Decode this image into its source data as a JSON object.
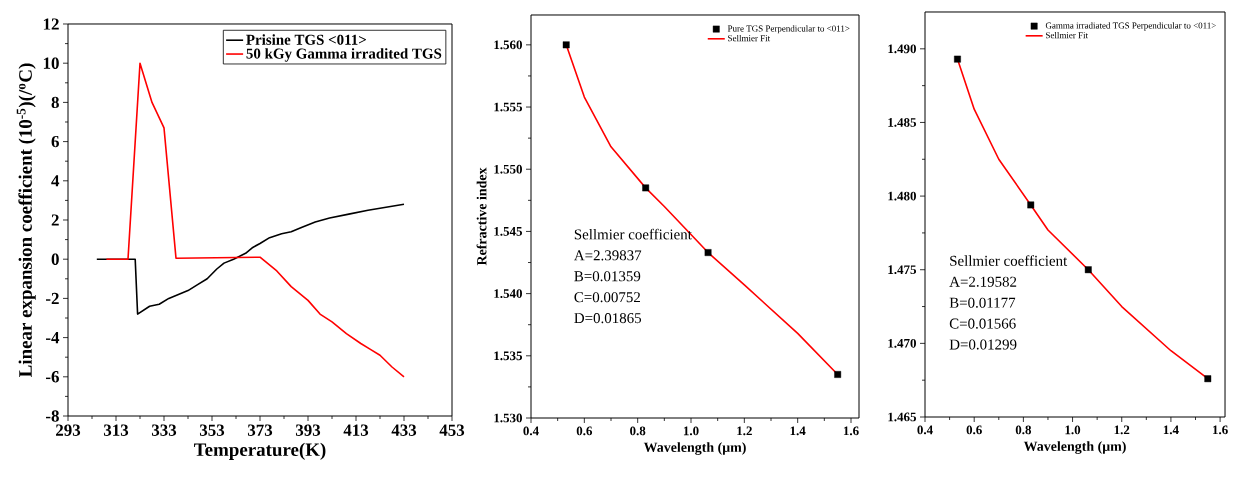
{
  "chart_data": [
    {
      "type": "line",
      "xlabel": "Temperature(K)",
      "ylabel": "Linear expansion coefficient (10$^{-5}$)(/$^{o}$C)",
      "xlim": [
        293,
        453
      ],
      "ylim": [
        -8,
        12
      ],
      "xticks": [
        293,
        313,
        333,
        353,
        373,
        393,
        413,
        433,
        453
      ],
      "yticks": [
        -8,
        -6,
        -4,
        -2,
        0,
        2,
        4,
        6,
        8,
        10,
        12
      ],
      "legend": "top right",
      "series": [
        {
          "name": "Prisine TGS <011>",
          "color": "#000000",
          "x": [
            305,
            321,
            322,
            327,
            331,
            335,
            339,
            343,
            347,
            351,
            355,
            358,
            362,
            367,
            370,
            373,
            377,
            382,
            386,
            390,
            396,
            402,
            410,
            418,
            423,
            433
          ],
          "values": [
            0,
            0,
            -2.8,
            -2.4,
            -2.3,
            -2.0,
            -1.8,
            -1.6,
            -1.3,
            -1.0,
            -0.5,
            -0.2,
            0,
            0.3,
            0.6,
            0.8,
            1.1,
            1.3,
            1.4,
            1.6,
            1.9,
            2.1,
            2.3,
            2.5,
            2.6,
            2.8
          ]
        },
        {
          "name": "50 kGy Gamma irradited TGS",
          "color": "#ff0000",
          "x": [
            309,
            318,
            323,
            328,
            333,
            338,
            373,
            380,
            386,
            393,
            398,
            403,
            409,
            415,
            419,
            423,
            428,
            433
          ],
          "values": [
            0,
            0,
            10,
            8,
            6.7,
            0.05,
            0.1,
            -0.6,
            -1.4,
            -2.1,
            -2.8,
            -3.2,
            -3.8,
            -4.3,
            -4.6,
            -4.9,
            -5.5,
            -6.0
          ]
        }
      ]
    },
    {
      "type": "scatter",
      "xlabel": "Wavelength (μm)",
      "ylabel": "Refractive index",
      "xlim": [
        0.4,
        1.63
      ],
      "ylim": [
        1.53,
        1.5624
      ],
      "xticks": [
        0.4,
        0.6,
        0.8,
        {
          "value": 1.0,
          "label": "1.0"
        },
        1.2,
        1.4,
        1.6
      ],
      "yticks": [
        {
          "value": 1.53,
          "label": "1.530"
        },
        {
          "value": 1.535,
          "label": "1.535"
        },
        {
          "value": 1.54,
          "label": "1.540"
        },
        {
          "value": 1.545,
          "label": "1.545"
        },
        {
          "value": 1.55,
          "label": "1.550"
        },
        {
          "value": 1.555,
          "label": "1.555"
        },
        {
          "value": 1.56,
          "label": "1.560"
        }
      ],
      "legend": "top right",
      "annotations": [
        "Sellmier coefficient",
        "A=2.39837",
        "B=0.01359",
        "C=0.00752",
        "D=0.01865"
      ],
      "series": [
        {
          "name": "Pure TGS Perpendicular to <011>",
          "type": "scatter",
          "marker": "square",
          "color": "#000000",
          "x": [
            0.532,
            0.83,
            1.064,
            1.55
          ],
          "values": [
            1.56,
            1.5485,
            1.5433,
            1.5335
          ]
        },
        {
          "name": "Sellmier Fit",
          "type": "line",
          "color": "#ff0000",
          "x": [
            0.532,
            0.6,
            0.7,
            0.83,
            0.9,
            1.064,
            1.2,
            1.4,
            1.55
          ],
          "values": [
            1.56,
            1.5558,
            1.5518,
            1.5485,
            1.547,
            1.5433,
            1.5407,
            1.5368,
            1.5335
          ]
        }
      ]
    },
    {
      "type": "scatter",
      "xlabel": "Wavelength (μm)",
      "xlim": [
        0.4,
        1.62
      ],
      "ylim": [
        1.465,
        1.4925
      ],
      "xticks": [
        0.4,
        0.6,
        0.8,
        {
          "value": 1.0,
          "label": "1.0"
        },
        1.2,
        1.4,
        1.6
      ],
      "yticks": [
        {
          "value": 1.465,
          "label": "1.465"
        },
        {
          "value": 1.47,
          "label": "1.470"
        },
        {
          "value": 1.475,
          "label": "1.475"
        },
        {
          "value": 1.48,
          "label": "1.480"
        },
        {
          "value": 1.485,
          "label": "1.485"
        },
        {
          "value": 1.49,
          "label": "1.490"
        }
      ],
      "legend": "top right",
      "annotations": [
        "Sellmier coefficient",
        "A=2.19582",
        "B=0.01177",
        "C=0.01566",
        "D=0.01299"
      ],
      "series": [
        {
          "name": "Gamma irradiated TGS Perpendicular to <011>",
          "type": "scatter",
          "marker": "square",
          "color": "#000000",
          "x": [
            0.532,
            0.83,
            1.064,
            1.55
          ],
          "values": [
            1.4893,
            1.4794,
            1.475,
            1.4676
          ]
        },
        {
          "name": "Sellmier Fit",
          "type": "line",
          "color": "#ff0000",
          "x": [
            0.532,
            0.6,
            0.7,
            0.83,
            0.9,
            1.064,
            1.2,
            1.4,
            1.55
          ],
          "values": [
            1.4893,
            1.4859,
            1.4825,
            1.4794,
            1.4777,
            1.475,
            1.4725,
            1.4695,
            1.4676
          ]
        }
      ]
    }
  ]
}
